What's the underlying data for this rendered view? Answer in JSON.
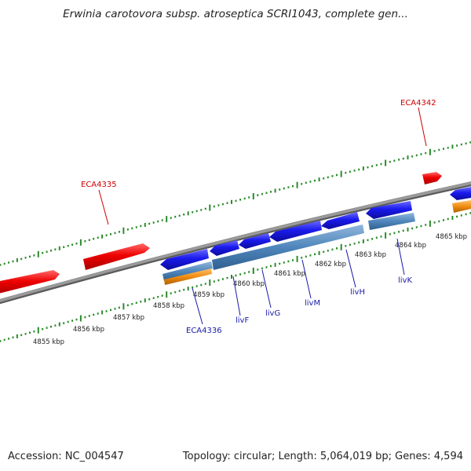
{
  "title": "Erwinia carotovora subsp. atroseptica SCRI1043, complete gen...",
  "footer": {
    "accession": "Accession: NC_004547",
    "summary": "Topology: circular; Length: 5,064,019 bp; Genes: 4,594"
  },
  "colors": {
    "backbone": "#8c8c8c",
    "forward_gene": "#ee0000",
    "reverse_gene": "#1a1aee",
    "operon": "#4f86bb",
    "orf": "#f08c10",
    "tick": "#2a8c2a",
    "forward_label": "#cc0000",
    "reverse_label": "#1a1aaa"
  },
  "scale_labels": [
    "4855 kbp",
    "4856 kbp",
    "4857 kbp",
    "4858 kbp",
    "4859 kbp",
    "4860 kbp",
    "4861 kbp",
    "4862 kbp",
    "4863 kbp",
    "4864 kbp",
    "4865 kbp"
  ],
  "gene_labels": [
    {
      "name": "ECA4335",
      "strand": "forward"
    },
    {
      "name": "ECA4342",
      "strand": "forward"
    },
    {
      "name": "ECA4336",
      "strand": "reverse"
    },
    {
      "name": "livF",
      "strand": "reverse"
    },
    {
      "name": "livG",
      "strand": "reverse"
    },
    {
      "name": "livM",
      "strand": "reverse"
    },
    {
      "name": "livH",
      "strand": "reverse"
    },
    {
      "name": "livK",
      "strand": "reverse"
    }
  ]
}
